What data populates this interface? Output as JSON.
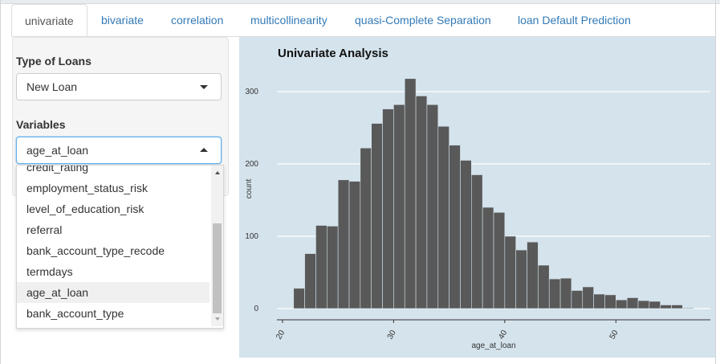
{
  "tabs": [
    {
      "label": "univariate",
      "active": true
    },
    {
      "label": "bivariate"
    },
    {
      "label": "correlation"
    },
    {
      "label": "multicollinearity"
    },
    {
      "label": "quasi-Complete Separation"
    },
    {
      "label": "loan Default Prediction"
    }
  ],
  "sidebar": {
    "loan_type": {
      "label": "Type of Loans",
      "value": "New Loan"
    },
    "variables": {
      "label": "Variables",
      "value": "age_at_loan",
      "options": [
        {
          "label": "credit_rating"
        },
        {
          "label": "employment_status_risk"
        },
        {
          "label": "level_of_education_risk"
        },
        {
          "label": "referral"
        },
        {
          "label": "bank_account_type_recode"
        },
        {
          "label": "termdays"
        },
        {
          "label": "age_at_loan",
          "highlighted": true
        },
        {
          "label": "bank_account_type"
        }
      ]
    }
  },
  "colors": {
    "plot_bg": "#d4e3ec",
    "bar": "#595959",
    "grid": "#ffffff",
    "tab_link": "#337ab7"
  },
  "chart_data": {
    "type": "bar",
    "title": "Univariate Analysis",
    "xlabel": "age_at_loan",
    "ylabel": "count",
    "x_ticks": [
      20,
      30,
      40,
      50
    ],
    "y_ticks": [
      0,
      100,
      200,
      300
    ],
    "xlim": [
      19.5,
      58.5
    ],
    "ylim": [
      0,
      320
    ],
    "bin_width": 1,
    "bin_starts": [
      21,
      22,
      23,
      24,
      25,
      26,
      27,
      28,
      29,
      30,
      31,
      32,
      33,
      34,
      35,
      36,
      37,
      38,
      39,
      40,
      41,
      42,
      43,
      44,
      45,
      46,
      47,
      48,
      49,
      50,
      51,
      52,
      53,
      54,
      55,
      56,
      57
    ],
    "values": [
      28,
      76,
      115,
      114,
      178,
      176,
      222,
      256,
      276,
      282,
      318,
      294,
      282,
      252,
      226,
      205,
      185,
      140,
      133,
      100,
      81,
      92,
      60,
      41,
      42,
      25,
      30,
      20,
      19,
      12,
      15,
      11,
      10,
      5,
      5,
      1,
      0
    ],
    "grid": "horizontal",
    "legend": "none"
  }
}
